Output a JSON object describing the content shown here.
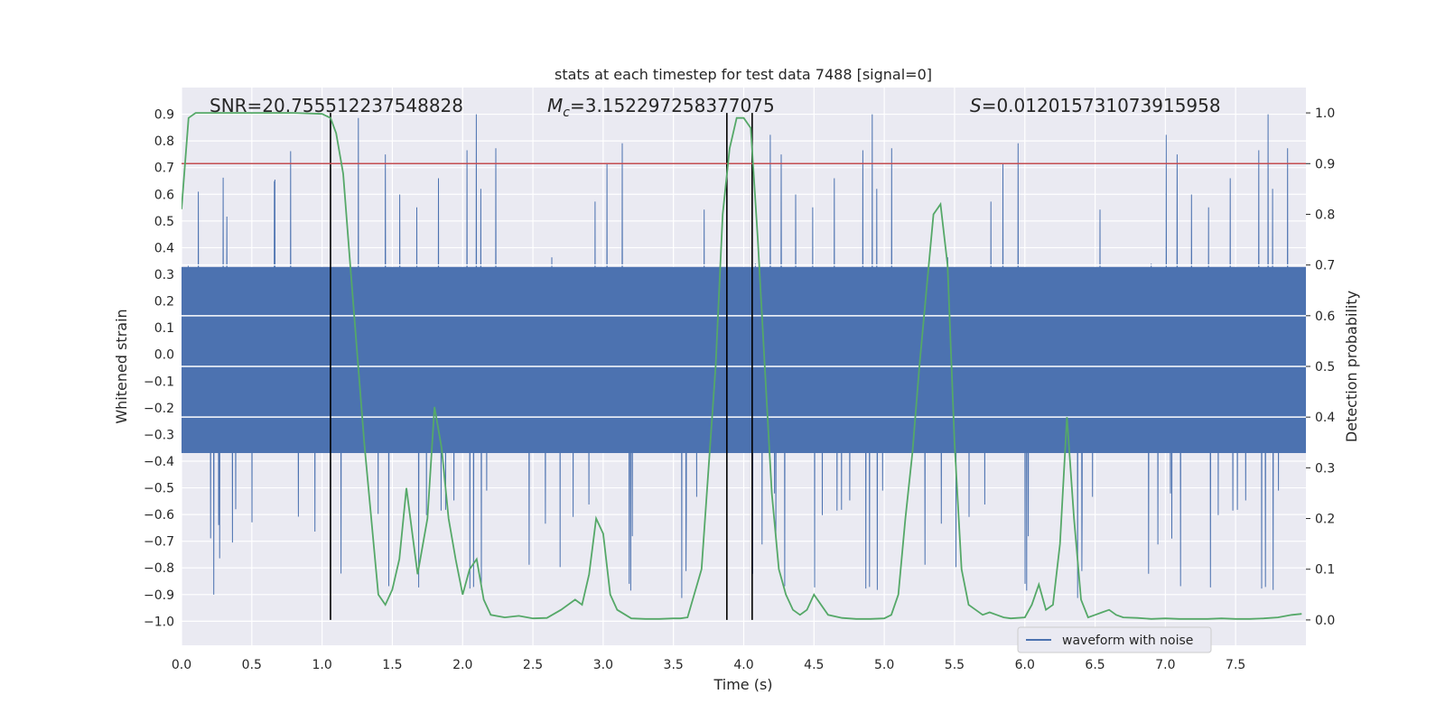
{
  "chart_data": {
    "type": "line",
    "title": "stats at each timestep for test data 7488 [signal=0]",
    "xlabel": "Time (s)",
    "ylabel": "Whitened strain",
    "y2label": "Detection probability",
    "xlim": [
      0,
      8
    ],
    "ylim": [
      -1.09,
      1.0
    ],
    "y2lim": [
      -0.05,
      1.05
    ],
    "xticks": [
      0.0,
      0.5,
      1.0,
      1.5,
      2.0,
      2.5,
      3.0,
      3.5,
      4.0,
      4.5,
      5.0,
      5.5,
      6.0,
      6.5,
      7.0,
      7.5
    ],
    "xtick_labels": [
      "0.0",
      "0.5",
      "1.0",
      "1.5",
      "2.0",
      "2.5",
      "3.0",
      "3.5",
      "4.0",
      "4.5",
      "5.0",
      "5.5",
      "6.0",
      "6.5",
      "7.0",
      "7.5"
    ],
    "yticks": [
      0.9,
      0.8,
      0.7,
      0.6,
      0.5,
      0.4,
      0.3,
      0.2,
      0.1,
      0.0,
      -0.1,
      -0.2,
      -0.3,
      -0.4,
      -0.5,
      -0.6,
      -0.7,
      -0.8,
      -0.9,
      -1.0
    ],
    "ytick_labels": [
      "0.9",
      "0.8",
      "0.7",
      "0.6",
      "0.5",
      "0.4",
      "0.3",
      "0.2",
      "0.1",
      "0.0",
      "−0.1",
      "−0.2",
      "−0.3",
      "−0.4",
      "−0.5",
      "−0.6",
      "−0.7",
      "−0.8",
      "−0.9",
      "−1.0"
    ],
    "y2ticks": [
      1.0,
      0.9,
      0.8,
      0.7,
      0.6,
      0.5,
      0.4,
      0.3,
      0.2,
      0.1,
      0.0
    ],
    "y2tick_labels": [
      "1.0",
      "0.9",
      "0.8",
      "0.7",
      "0.6",
      "0.5",
      "0.4",
      "0.3",
      "0.2",
      "0.1",
      "0.0"
    ],
    "annotations": {
      "snr": "SNR=20.755512237548828",
      "mc_symbol": "M",
      "mc_sub": "c",
      "mc_value": "=3.152297258377075",
      "s_symbol": "S",
      "s_value": "=0.012015731073915958"
    },
    "threshold_y2": 0.9,
    "vlines_x": [
      1.06,
      3.88,
      4.06
    ],
    "legend": {
      "label": "waveform with noise",
      "position": "lower-right"
    },
    "waveform": {
      "name": "waveform with noise",
      "note": "dense noisy strain trace, envelope approx ±0.4 with peaks near ±0.9",
      "core_amplitude": 0.42,
      "peak_max": 0.9,
      "peak_min": -1.0
    },
    "series": [
      {
        "name": "Detection probability",
        "axis": "right",
        "x": [
          0.0,
          0.05,
          0.1,
          0.2,
          0.4,
          0.6,
          0.8,
          1.0,
          1.06,
          1.1,
          1.15,
          1.2,
          1.3,
          1.4,
          1.45,
          1.5,
          1.55,
          1.6,
          1.68,
          1.75,
          1.8,
          1.85,
          1.9,
          1.95,
          2.0,
          2.05,
          2.1,
          2.15,
          2.2,
          2.3,
          2.4,
          2.5,
          2.6,
          2.7,
          2.8,
          2.85,
          2.9,
          2.95,
          3.0,
          3.05,
          3.1,
          3.2,
          3.3,
          3.4,
          3.5,
          3.55,
          3.6,
          3.7,
          3.8,
          3.85,
          3.9,
          3.95,
          4.0,
          4.05,
          4.1,
          4.15,
          4.2,
          4.25,
          4.3,
          4.35,
          4.4,
          4.45,
          4.5,
          4.6,
          4.7,
          4.8,
          4.9,
          5.0,
          5.05,
          5.1,
          5.15,
          5.2,
          5.25,
          5.3,
          5.35,
          5.4,
          5.45,
          5.5,
          5.55,
          5.6,
          5.65,
          5.7,
          5.75,
          5.8,
          5.85,
          5.9,
          6.0,
          6.05,
          6.1,
          6.15,
          6.2,
          6.25,
          6.3,
          6.35,
          6.4,
          6.45,
          6.5,
          6.55,
          6.6,
          6.65,
          6.7,
          6.8,
          6.9,
          7.0,
          7.1,
          7.2,
          7.3,
          7.4,
          7.5,
          7.6,
          7.7,
          7.8,
          7.9,
          7.97
        ],
        "values": [
          0.81,
          0.99,
          1.0,
          1.0,
          1.0,
          1.0,
          1.0,
          0.998,
          0.99,
          0.96,
          0.88,
          0.7,
          0.35,
          0.05,
          0.03,
          0.06,
          0.12,
          0.26,
          0.09,
          0.2,
          0.42,
          0.34,
          0.2,
          0.12,
          0.05,
          0.1,
          0.12,
          0.04,
          0.01,
          0.005,
          0.008,
          0.003,
          0.004,
          0.02,
          0.04,
          0.03,
          0.09,
          0.2,
          0.17,
          0.05,
          0.02,
          0.003,
          0.002,
          0.002,
          0.003,
          0.003,
          0.005,
          0.1,
          0.5,
          0.8,
          0.93,
          0.99,
          0.99,
          0.97,
          0.75,
          0.5,
          0.25,
          0.1,
          0.05,
          0.02,
          0.01,
          0.02,
          0.05,
          0.01,
          0.004,
          0.002,
          0.002,
          0.003,
          0.01,
          0.05,
          0.2,
          0.33,
          0.5,
          0.65,
          0.8,
          0.82,
          0.7,
          0.35,
          0.1,
          0.03,
          0.02,
          0.01,
          0.015,
          0.01,
          0.005,
          0.003,
          0.005,
          0.03,
          0.07,
          0.02,
          0.03,
          0.15,
          0.4,
          0.2,
          0.04,
          0.005,
          0.01,
          0.015,
          0.02,
          0.01,
          0.005,
          0.004,
          0.002,
          0.003,
          0.002,
          0.002,
          0.002,
          0.003,
          0.002,
          0.002,
          0.003,
          0.005,
          0.01,
          0.012
        ]
      }
    ]
  }
}
